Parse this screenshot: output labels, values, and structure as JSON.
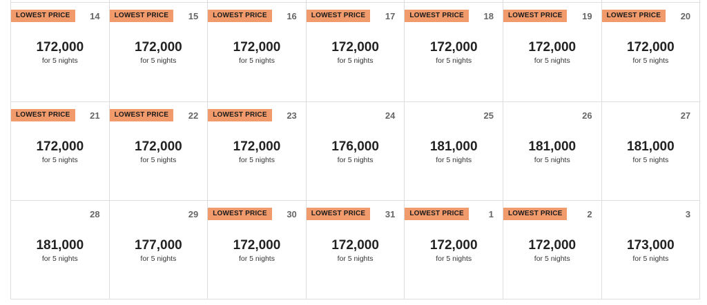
{
  "badge_label": "LOWEST PRICE",
  "nights_label": "for 5 nights",
  "colors": {
    "badge": "#f19b6c",
    "border": "#dddddd"
  },
  "days": [
    {
      "day": "14",
      "price": "172,000",
      "lowest": true
    },
    {
      "day": "15",
      "price": "172,000",
      "lowest": true
    },
    {
      "day": "16",
      "price": "172,000",
      "lowest": true
    },
    {
      "day": "17",
      "price": "172,000",
      "lowest": true
    },
    {
      "day": "18",
      "price": "172,000",
      "lowest": true
    },
    {
      "day": "19",
      "price": "172,000",
      "lowest": true
    },
    {
      "day": "20",
      "price": "172,000",
      "lowest": true
    },
    {
      "day": "21",
      "price": "172,000",
      "lowest": true
    },
    {
      "day": "22",
      "price": "172,000",
      "lowest": true
    },
    {
      "day": "23",
      "price": "172,000",
      "lowest": true
    },
    {
      "day": "24",
      "price": "176,000",
      "lowest": false
    },
    {
      "day": "25",
      "price": "181,000",
      "lowest": false
    },
    {
      "day": "26",
      "price": "181,000",
      "lowest": false
    },
    {
      "day": "27",
      "price": "181,000",
      "lowest": false
    },
    {
      "day": "28",
      "price": "181,000",
      "lowest": false
    },
    {
      "day": "29",
      "price": "177,000",
      "lowest": false
    },
    {
      "day": "30",
      "price": "172,000",
      "lowest": true
    },
    {
      "day": "31",
      "price": "172,000",
      "lowest": true
    },
    {
      "day": "1",
      "price": "172,000",
      "lowest": true
    },
    {
      "day": "2",
      "price": "172,000",
      "lowest": true
    },
    {
      "day": "3",
      "price": "173,000",
      "lowest": false
    }
  ]
}
